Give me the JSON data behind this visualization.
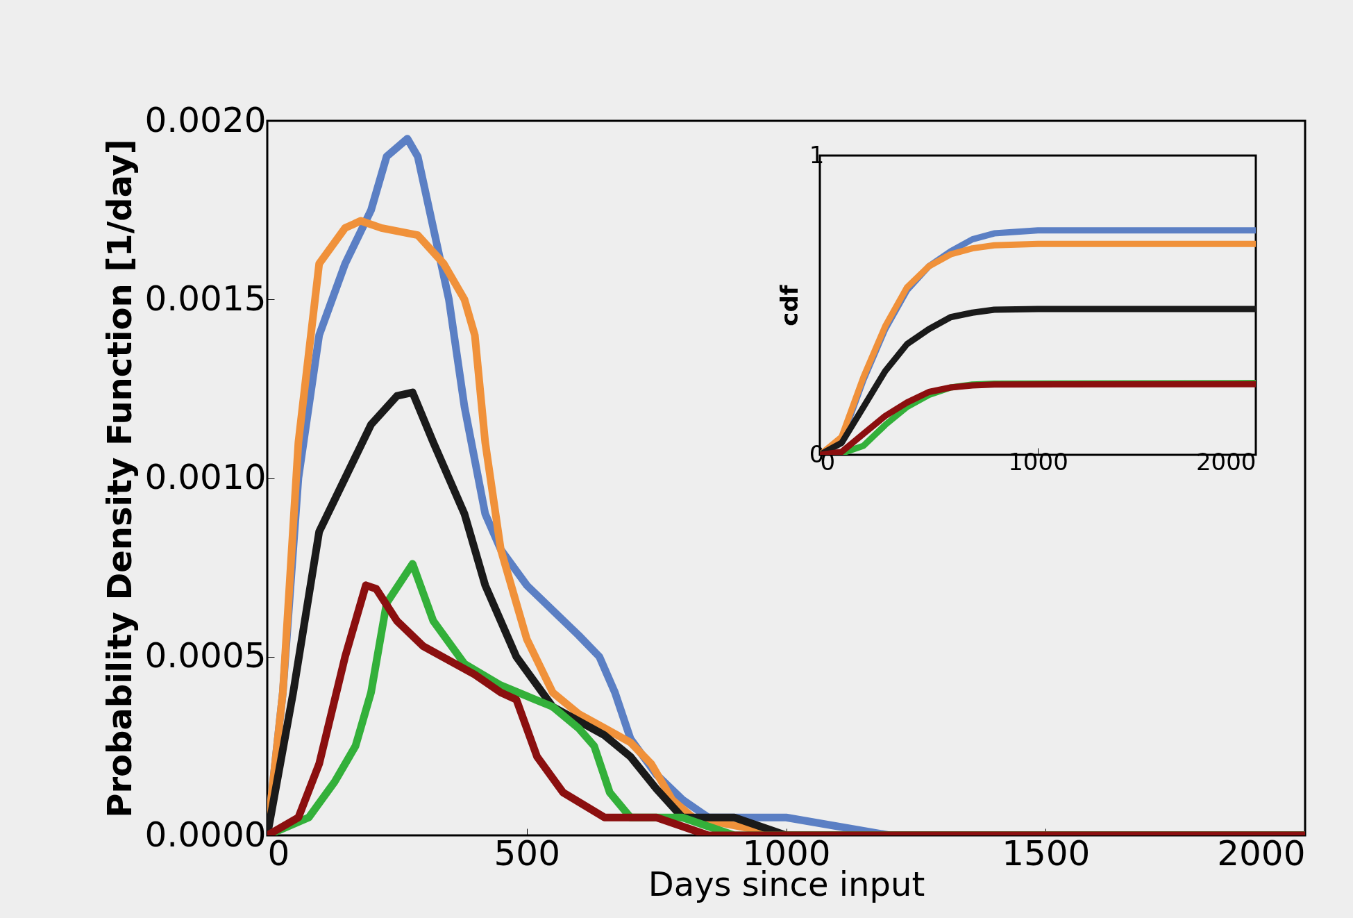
{
  "chart_data": [
    {
      "type": "line",
      "xlabel": "Days since input",
      "ylabel": "Probability Density Function [1/day]",
      "xlim": [
        0,
        2000
      ],
      "xticks": [
        0,
        500,
        1000,
        1500,
        2000
      ],
      "ylim": [
        0,
        0.002
      ],
      "yticks": [
        {
          "value": 0,
          "label": "0.0000"
        },
        {
          "value": 0.0005,
          "label": "0.0005"
        },
        {
          "value": 0.001,
          "label": "0.0010"
        },
        {
          "value": 0.0015,
          "label": "0.0015"
        },
        {
          "value": 0.002,
          "label": "0.0020"
        }
      ],
      "series": [
        {
          "color": "#5b7fc4",
          "x": [
            0,
            30,
            60,
            100,
            150,
            200,
            230,
            270,
            290,
            320,
            350,
            380,
            420,
            450,
            500,
            550,
            600,
            640,
            670,
            700,
            750,
            800,
            850,
            1000,
            1200,
            1500,
            2000
          ],
          "values": [
            0,
            0.0004,
            0.001,
            0.0014,
            0.0016,
            0.00175,
            0.0019,
            0.00195,
            0.0019,
            0.0017,
            0.0015,
            0.0012,
            0.0009,
            0.0008,
            0.0007,
            0.00063,
            0.00056,
            0.0005,
            0.0004,
            0.00027,
            0.00017,
            0.0001,
            5e-05,
            5e-05,
            0,
            0,
            0
          ]
        },
        {
          "color": "#f0913a",
          "x": [
            0,
            30,
            60,
            100,
            150,
            180,
            220,
            290,
            340,
            380,
            400,
            420,
            450,
            500,
            550,
            600,
            650,
            700,
            740,
            780,
            820,
            1000,
            1200,
            2000
          ],
          "values": [
            0,
            0.0004,
            0.0011,
            0.0016,
            0.0017,
            0.00172,
            0.0017,
            0.00168,
            0.0016,
            0.0015,
            0.0014,
            0.0011,
            0.0008,
            0.00055,
            0.0004,
            0.00034,
            0.0003,
            0.00026,
            0.0002,
            0.0001,
            5e-05,
            0,
            0,
            0
          ]
        },
        {
          "color": "#1a1a1a",
          "x": [
            0,
            50,
            100,
            150,
            200,
            250,
            280,
            320,
            380,
            420,
            480,
            550,
            650,
            700,
            750,
            800,
            900,
            1000,
            2000
          ],
          "values": [
            0,
            0.0004,
            0.00085,
            0.001,
            0.00115,
            0.00123,
            0.00124,
            0.0011,
            0.0009,
            0.0007,
            0.0005,
            0.00036,
            0.00028,
            0.00022,
            0.00013,
            5e-05,
            5e-05,
            0,
            0
          ]
        },
        {
          "color": "#33b03a",
          "x": [
            0,
            80,
            130,
            170,
            200,
            230,
            280,
            320,
            380,
            450,
            550,
            600,
            630,
            660,
            700,
            800,
            900,
            2000
          ],
          "values": [
            0,
            5e-05,
            0.00015,
            0.00025,
            0.0004,
            0.00065,
            0.00076,
            0.0006,
            0.00048,
            0.00042,
            0.00036,
            0.0003,
            0.00025,
            0.00012,
            5e-05,
            5e-05,
            0,
            0
          ]
        },
        {
          "color": "#8b0f0f",
          "x": [
            0,
            60,
            100,
            150,
            190,
            210,
            250,
            300,
            400,
            450,
            480,
            520,
            570,
            650,
            750,
            850,
            1000,
            2000
          ],
          "values": [
            0,
            5e-05,
            0.0002,
            0.0005,
            0.0007,
            0.00069,
            0.0006,
            0.00053,
            0.00045,
            0.0004,
            0.00038,
            0.00022,
            0.00012,
            5e-05,
            5e-05,
            0,
            0,
            0
          ]
        }
      ]
    },
    {
      "type": "line",
      "ylabel": "cdf",
      "xlim": [
        0,
        2000
      ],
      "xticks": [
        0,
        1000,
        2000
      ],
      "ylim": [
        0,
        1
      ],
      "yticks": [
        0,
        1
      ],
      "series": [
        {
          "color": "#5b7fc4",
          "x": [
            0,
            100,
            200,
            300,
            400,
            500,
            600,
            700,
            800,
            1000,
            2000
          ],
          "values": [
            0,
            0.05,
            0.25,
            0.42,
            0.55,
            0.63,
            0.68,
            0.72,
            0.74,
            0.75,
            0.75
          ]
        },
        {
          "color": "#f0913a",
          "x": [
            0,
            100,
            200,
            300,
            400,
            500,
            600,
            700,
            800,
            1000,
            2000
          ],
          "values": [
            0,
            0.06,
            0.26,
            0.43,
            0.56,
            0.63,
            0.67,
            0.69,
            0.7,
            0.705,
            0.705
          ]
        },
        {
          "color": "#1a1a1a",
          "x": [
            0,
            100,
            200,
            300,
            400,
            500,
            600,
            700,
            800,
            1000,
            2000
          ],
          "values": [
            0,
            0.04,
            0.16,
            0.28,
            0.37,
            0.42,
            0.46,
            0.475,
            0.485,
            0.487,
            0.487
          ]
        },
        {
          "color": "#33b03a",
          "x": [
            0,
            100,
            200,
            300,
            400,
            500,
            600,
            700,
            800,
            2000
          ],
          "values": [
            0,
            0.005,
            0.03,
            0.1,
            0.16,
            0.2,
            0.225,
            0.235,
            0.238,
            0.24
          ]
        },
        {
          "color": "#8b0f0f",
          "x": [
            0,
            100,
            200,
            300,
            400,
            500,
            600,
            700,
            800,
            2000
          ],
          "values": [
            0,
            0.01,
            0.07,
            0.13,
            0.175,
            0.21,
            0.225,
            0.232,
            0.235,
            0.236
          ]
        }
      ]
    }
  ]
}
